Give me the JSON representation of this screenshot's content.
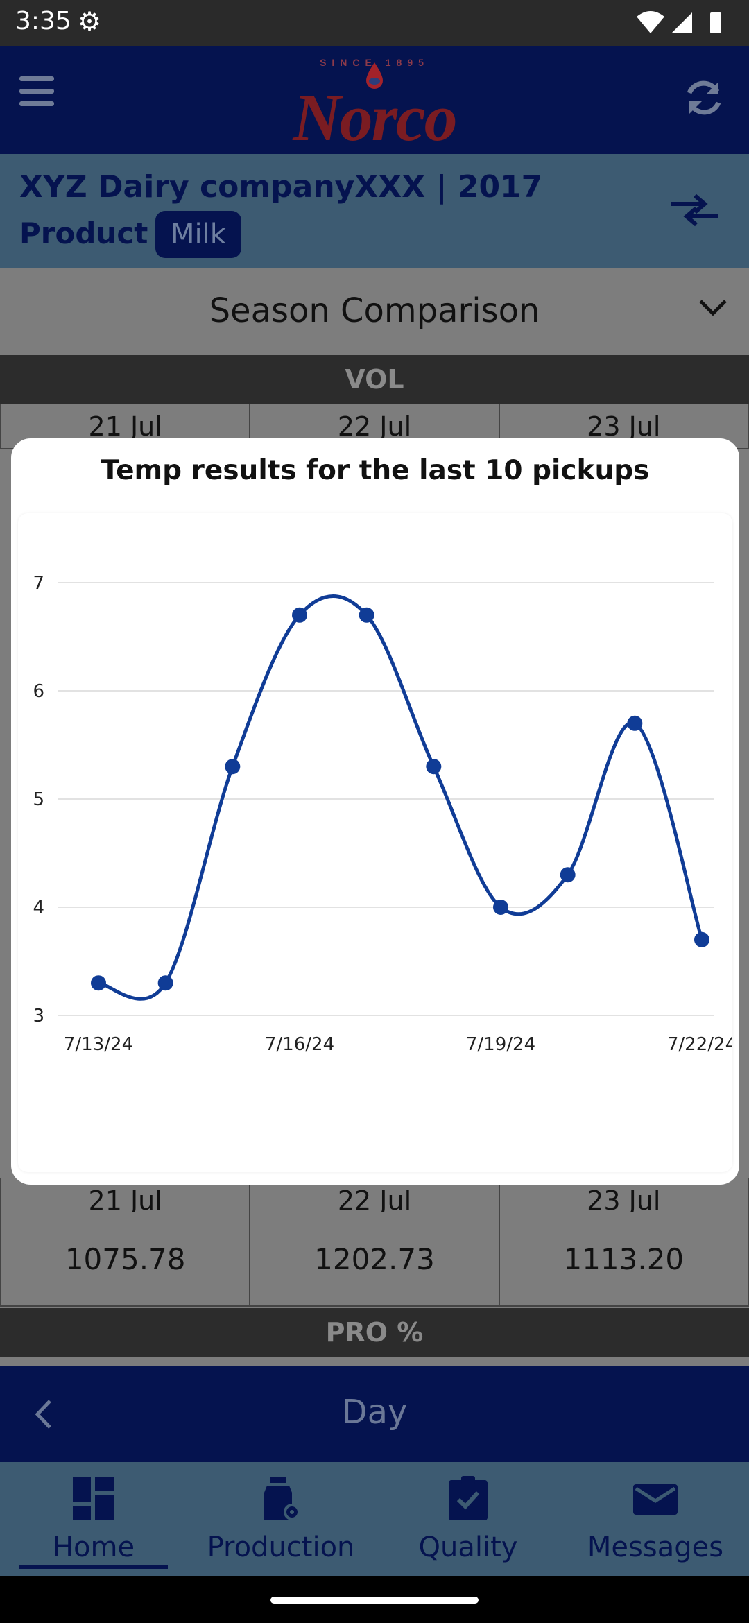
{
  "status_bar": {
    "time": "3:35"
  },
  "header": {
    "logo_since": "SINCE      1895",
    "logo_word": "Norco"
  },
  "company": {
    "title": "XYZ Dairy companyXXX | 2017",
    "product_label": "Product",
    "product_value": "Milk"
  },
  "season": {
    "selected": "Season Comparison"
  },
  "table": {
    "vol_header": "VOL",
    "dates": [
      "21 Jul",
      "22 Jul",
      "23 Jul"
    ],
    "values": [
      "1075.78",
      "1202.73",
      "1113.20"
    ],
    "pro_header": "PRO %"
  },
  "day_nav": {
    "label": "Day"
  },
  "bottom_nav": [
    {
      "label": "Home",
      "icon": "dashboard-icon"
    },
    {
      "label": "Production",
      "icon": "milk-can-gear-icon"
    },
    {
      "label": "Quality",
      "icon": "clipboard-check-icon"
    },
    {
      "label": "Messages",
      "icon": "envelope-icon"
    }
  ],
  "colors": {
    "navy": "#05134f",
    "band": "#3d5b72",
    "series": "#103c96"
  },
  "modal": {
    "title": "Temp results for the last 10 pickups"
  },
  "chart_data": {
    "type": "line",
    "title": "Temp results for the last 10 pickups",
    "x": [
      "7/13/24",
      "7/14/24",
      "7/15/24",
      "7/16/24",
      "7/17/24",
      "7/18/24",
      "7/19/24",
      "7/20/24",
      "7/21/24",
      "7/22/24"
    ],
    "values": [
      3.3,
      3.3,
      5.3,
      6.7,
      6.7,
      5.3,
      4.0,
      4.3,
      5.7,
      3.7
    ],
    "x_tick_labels": [
      "7/13/24",
      "7/16/24",
      "7/19/24",
      "7/22/24"
    ],
    "y_ticks": [
      3,
      4,
      5,
      6,
      7
    ],
    "ylim": [
      3,
      7
    ],
    "grid": "horizontal",
    "smooth": true
  }
}
